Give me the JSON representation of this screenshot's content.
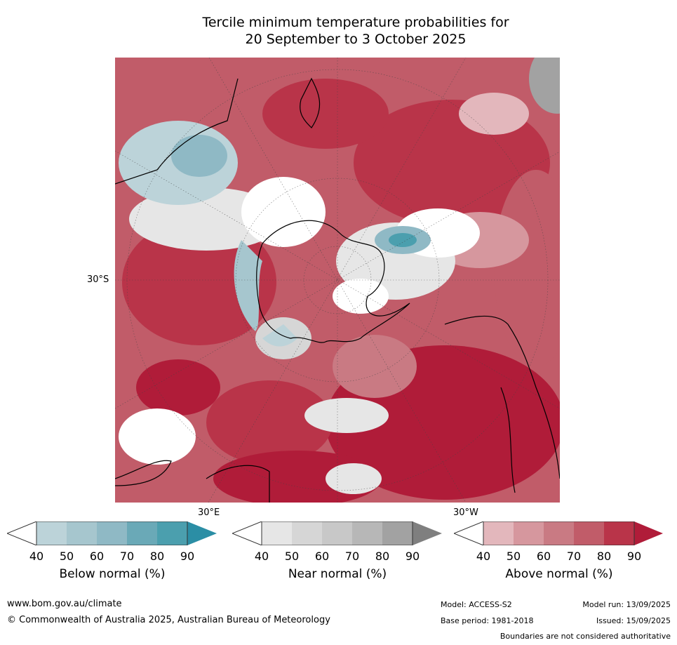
{
  "title": {
    "line1": "Tercile minimum temperature probabilities for",
    "line2": "20 September to 3 October 2025"
  },
  "map": {
    "lat_label": "30°S",
    "lon_labels": [
      "30°E",
      "30°W"
    ],
    "colors": {
      "above": [
        "#e3b7bc",
        "#d6979e",
        "#c97a83",
        "#c15c69",
        "#b93449",
        "#b01c39"
      ],
      "below": [
        "#bcd3d9",
        "#a6c6ce",
        "#8fb9c5",
        "#6aa9b7",
        "#4b9fae",
        "#2b8ea5"
      ],
      "near": [
        "#e6e6e6",
        "#d6d6d6",
        "#c8c8c8",
        "#b7b7b7",
        "#a2a2a2",
        "#7f7f7f"
      ],
      "coast": "#000000"
    }
  },
  "colorbars": [
    {
      "name": "below",
      "label": "Below normal (%)",
      "ticks": [
        "40",
        "50",
        "60",
        "70",
        "80",
        "90"
      ],
      "colors": [
        "#bcd3d9",
        "#a6c6ce",
        "#8fb9c5",
        "#6aa9b7",
        "#4b9fae",
        "#2b8ea5"
      ]
    },
    {
      "name": "near",
      "label": "Near normal (%)",
      "ticks": [
        "40",
        "50",
        "60",
        "70",
        "80",
        "90"
      ],
      "colors": [
        "#e6e6e6",
        "#d6d6d6",
        "#c8c8c8",
        "#b7b7b7",
        "#a2a2a2",
        "#7f7f7f"
      ]
    },
    {
      "name": "above",
      "label": "Above normal (%)",
      "ticks": [
        "40",
        "50",
        "60",
        "70",
        "80",
        "90"
      ],
      "colors": [
        "#e3b7bc",
        "#d6979e",
        "#c97a83",
        "#c15c69",
        "#b93449",
        "#b01c39"
      ]
    }
  ],
  "footer": {
    "website": "www.bom.gov.au/climate",
    "copyright": "© Commonwealth of Australia 2025, Australian Bureau of Meteorology",
    "model": "Model: ACCESS-S2",
    "model_run": "Model run: 13/09/2025",
    "base_period": "Base period: 1981-2018",
    "issued": "Issued: 15/09/2025",
    "disclaimer": "Boundaries are not considered authoritative"
  }
}
